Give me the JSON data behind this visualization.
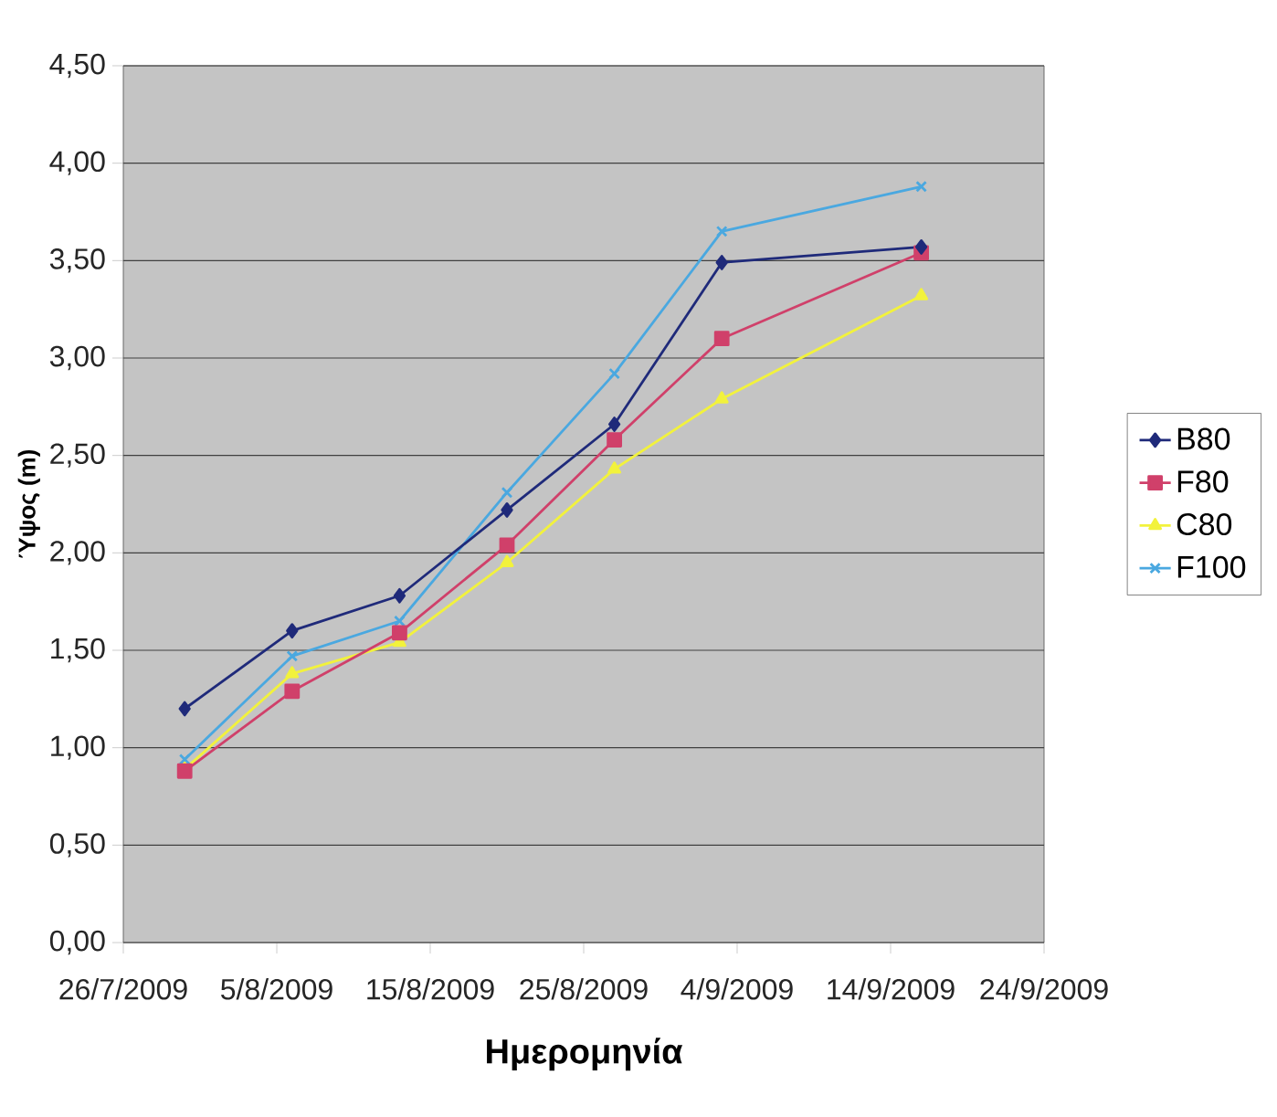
{
  "chart_data": {
    "type": "line",
    "xlabel": "Ημερομηνία",
    "ylabel": "Ύψος (m)",
    "x": [
      "2009-07-30",
      "2009-08-06",
      "2009-08-13",
      "2009-08-20",
      "2009-08-27",
      "2009-09-03",
      "2009-09-16"
    ],
    "series": [
      {
        "name": "B80",
        "color": "#1f2a7a",
        "marker": "diamond",
        "values": [
          1.2,
          1.6,
          1.78,
          2.22,
          2.66,
          3.49,
          3.57
        ]
      },
      {
        "name": "F80",
        "color": "#d0406a",
        "marker": "square",
        "values": [
          0.88,
          1.29,
          1.59,
          2.04,
          2.58,
          3.1,
          3.54
        ]
      },
      {
        "name": "C80",
        "color": "#f2f23c",
        "marker": "triangle",
        "values": [
          0.89,
          1.38,
          1.54,
          1.95,
          2.43,
          2.79,
          3.32
        ]
      },
      {
        "name": "F100",
        "color": "#4aa8e0",
        "marker": "cross",
        "values": [
          0.94,
          1.47,
          1.65,
          2.31,
          2.92,
          3.65,
          3.88
        ]
      }
    ],
    "xlim": [
      "2009-07-26",
      "2009-09-24"
    ],
    "xticks": [
      {
        "value": "2009-07-26",
        "label": "26/7/2009"
      },
      {
        "value": "2009-08-05",
        "label": "5/8/2009"
      },
      {
        "value": "2009-08-15",
        "label": "15/8/2009"
      },
      {
        "value": "2009-08-25",
        "label": "25/8/2009"
      },
      {
        "value": "2009-09-04",
        "label": "4/9/2009"
      },
      {
        "value": "2009-09-14",
        "label": "14/9/2009"
      },
      {
        "value": "2009-09-24",
        "label": "24/9/2009"
      }
    ],
    "ylim": [
      0,
      4.5
    ],
    "yticks": [
      {
        "value": 0,
        "label": "0,00"
      },
      {
        "value": 0.5,
        "label": "0,50"
      },
      {
        "value": 1,
        "label": "1,00"
      },
      {
        "value": 1.5,
        "label": "1,50"
      },
      {
        "value": 2,
        "label": "2,00"
      },
      {
        "value": 2.5,
        "label": "2,50"
      },
      {
        "value": 3,
        "label": "3,00"
      },
      {
        "value": 3.5,
        "label": "3,50"
      },
      {
        "value": 4,
        "label": "4,00"
      },
      {
        "value": 4.5,
        "label": "4,50"
      }
    ],
    "grid": "y",
    "legend": "right",
    "line_style": "solid"
  }
}
